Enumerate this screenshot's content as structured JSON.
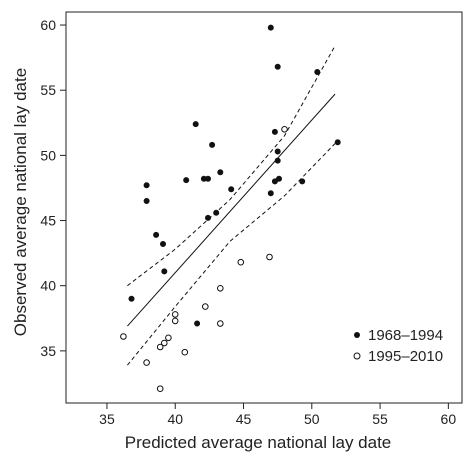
{
  "chart_data": {
    "type": "scatter",
    "xlabel": "Predicted average national lay date",
    "ylabel": "Observed average national lay date",
    "xlim": [
      32,
      61
    ],
    "ylim": [
      31,
      61
    ],
    "xticks": [
      35,
      40,
      45,
      50,
      55,
      60
    ],
    "yticks": [
      35,
      40,
      45,
      50,
      55,
      60
    ],
    "xtick_labels": [
      "35",
      "40",
      "45",
      "50",
      "55",
      "60"
    ],
    "ytick_labels": [
      "35",
      "40",
      "45",
      "50",
      "55",
      "60"
    ],
    "grid": false,
    "legend_position": "bottom-right",
    "series": [
      {
        "name": "1968–1994",
        "marker": "filled-circle",
        "color": "#111111",
        "points": [
          [
            36.8,
            39.0
          ],
          [
            37.9,
            47.7
          ],
          [
            37.9,
            46.5
          ],
          [
            38.6,
            43.9
          ],
          [
            39.1,
            43.2
          ],
          [
            39.2,
            41.1
          ],
          [
            40.8,
            48.1
          ],
          [
            41.5,
            52.4
          ],
          [
            41.6,
            37.1
          ],
          [
            42.1,
            48.2
          ],
          [
            42.4,
            48.2
          ],
          [
            42.4,
            45.2
          ],
          [
            42.7,
            50.8
          ],
          [
            43.0,
            45.6
          ],
          [
            43.3,
            48.7
          ],
          [
            44.1,
            47.4
          ],
          [
            47.0,
            59.8
          ],
          [
            47.0,
            47.1
          ],
          [
            47.3,
            51.8
          ],
          [
            47.3,
            48.0
          ],
          [
            47.5,
            56.8
          ],
          [
            47.5,
            50.3
          ],
          [
            47.5,
            49.6
          ],
          [
            47.6,
            48.2
          ],
          [
            49.3,
            48.0
          ],
          [
            50.4,
            56.4
          ],
          [
            51.9,
            51.0
          ]
        ]
      },
      {
        "name": "1995–2010",
        "marker": "open-circle",
        "color": "#111111",
        "points": [
          [
            36.2,
            36.1
          ],
          [
            37.9,
            34.1
          ],
          [
            38.9,
            32.1
          ],
          [
            38.9,
            35.3
          ],
          [
            39.2,
            35.6
          ],
          [
            39.5,
            36.0
          ],
          [
            40.0,
            37.3
          ],
          [
            40.0,
            37.8
          ],
          [
            40.7,
            34.9
          ],
          [
            42.2,
            38.4
          ],
          [
            43.3,
            39.8
          ],
          [
            43.3,
            37.1
          ],
          [
            44.8,
            41.8
          ],
          [
            46.9,
            42.2
          ],
          [
            48.0,
            52.0
          ]
        ]
      }
    ],
    "regression_line": {
      "x": [
        36.5,
        51.7
      ],
      "y": [
        36.9,
        54.7
      ]
    },
    "confidence_band": {
      "upper": {
        "x": [
          36.5,
          40,
          44,
          48,
          51.7
        ],
        "y": [
          40.0,
          42.8,
          46.6,
          51.5,
          58.4
        ]
      },
      "lower": {
        "x": [
          36.5,
          40,
          44,
          48,
          51.7
        ],
        "y": [
          33.9,
          38.4,
          43.4,
          46.9,
          50.9
        ]
      }
    }
  }
}
